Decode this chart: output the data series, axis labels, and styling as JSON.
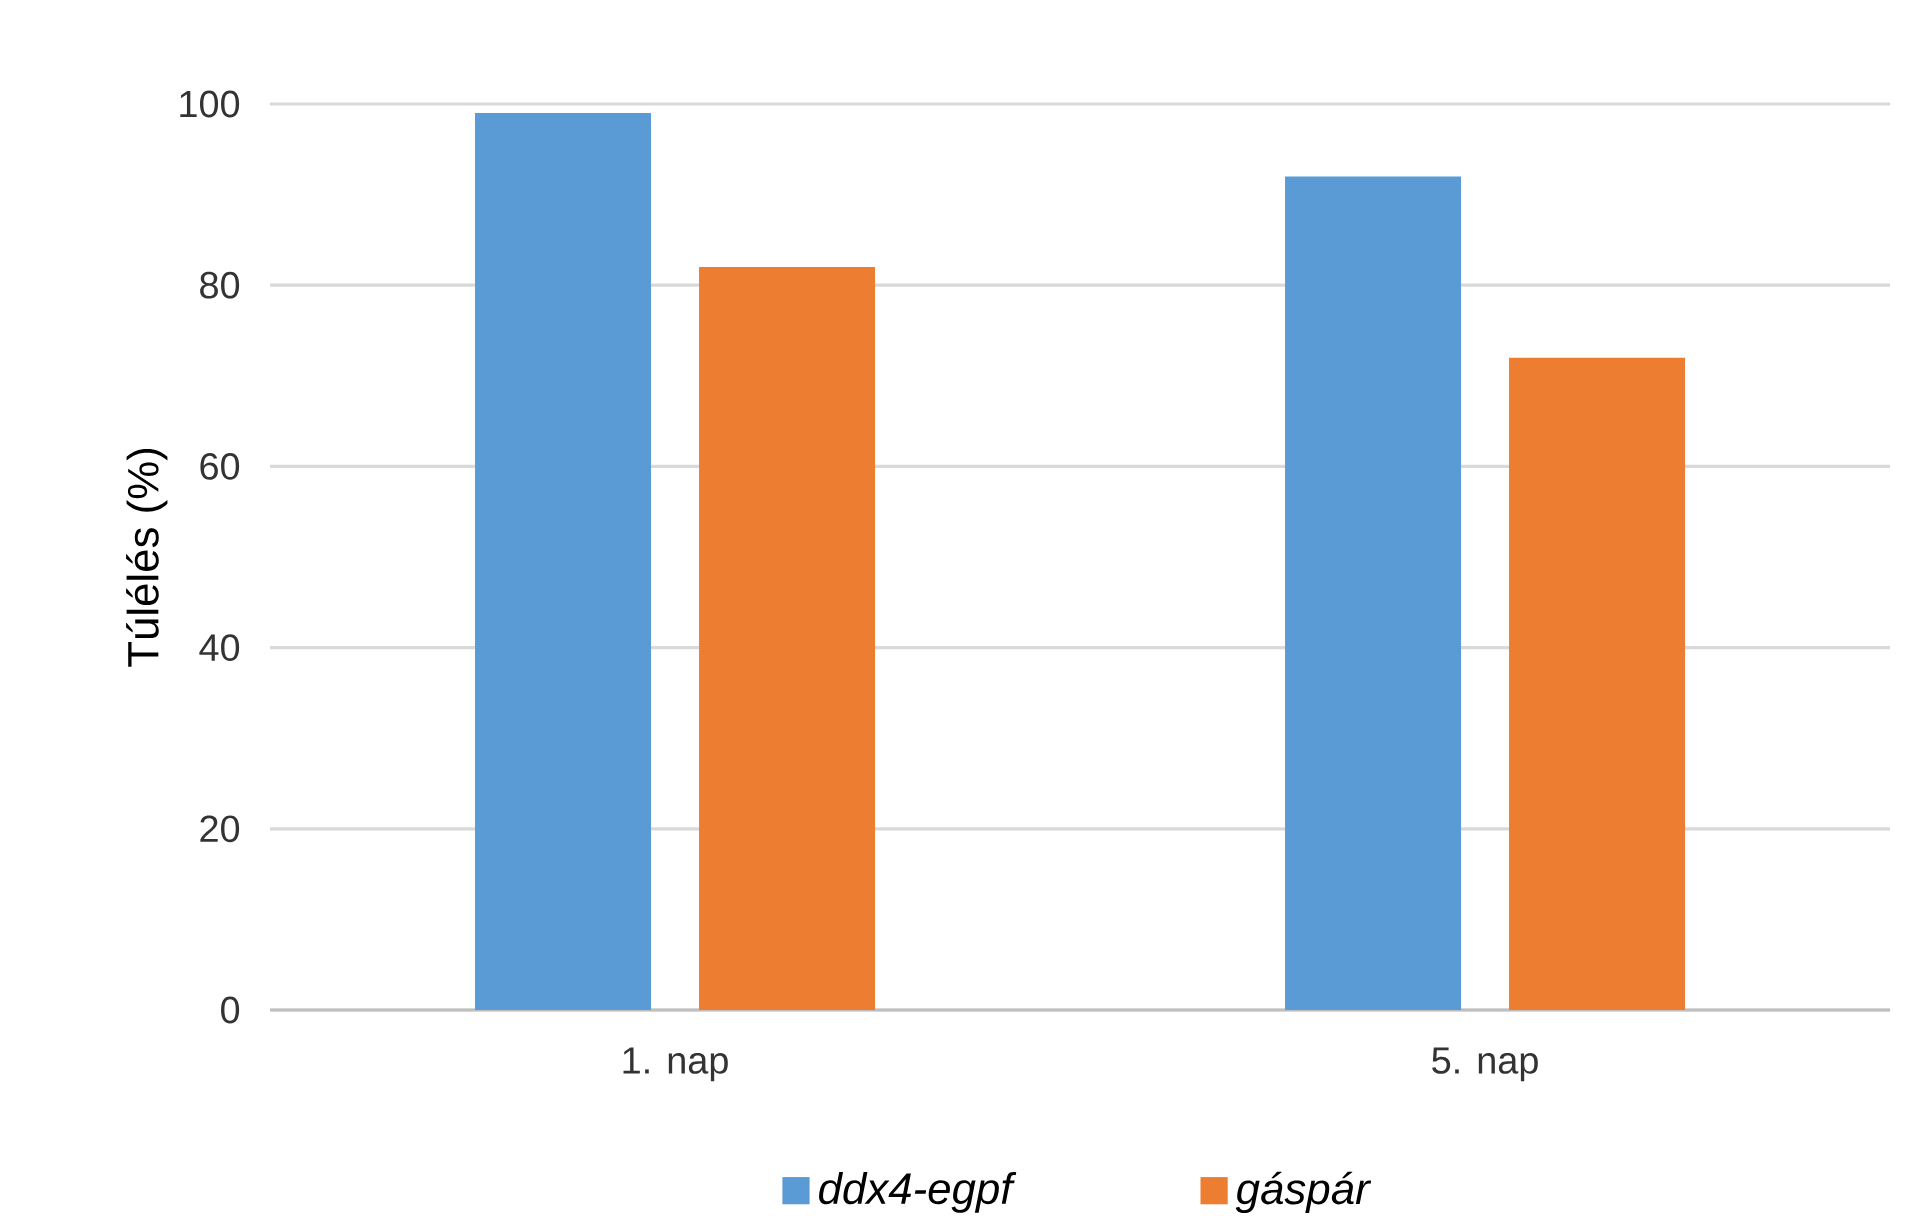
{
  "chart_data": {
    "type": "bar",
    "ylabel": "Túlélés (%)",
    "categories": [
      "1. nap",
      "5. nap"
    ],
    "series": [
      {
        "name": "ddx4-egpf",
        "color": "#5b9bd5",
        "values": [
          99,
          92
        ]
      },
      {
        "name": "gáspár",
        "color": "#ed7d31",
        "values": [
          82,
          72
        ]
      }
    ],
    "ylim": [
      0,
      100
    ],
    "yticks": [
      0,
      20,
      40,
      60,
      80,
      100
    ],
    "grid": "y",
    "legend": "bottom"
  }
}
